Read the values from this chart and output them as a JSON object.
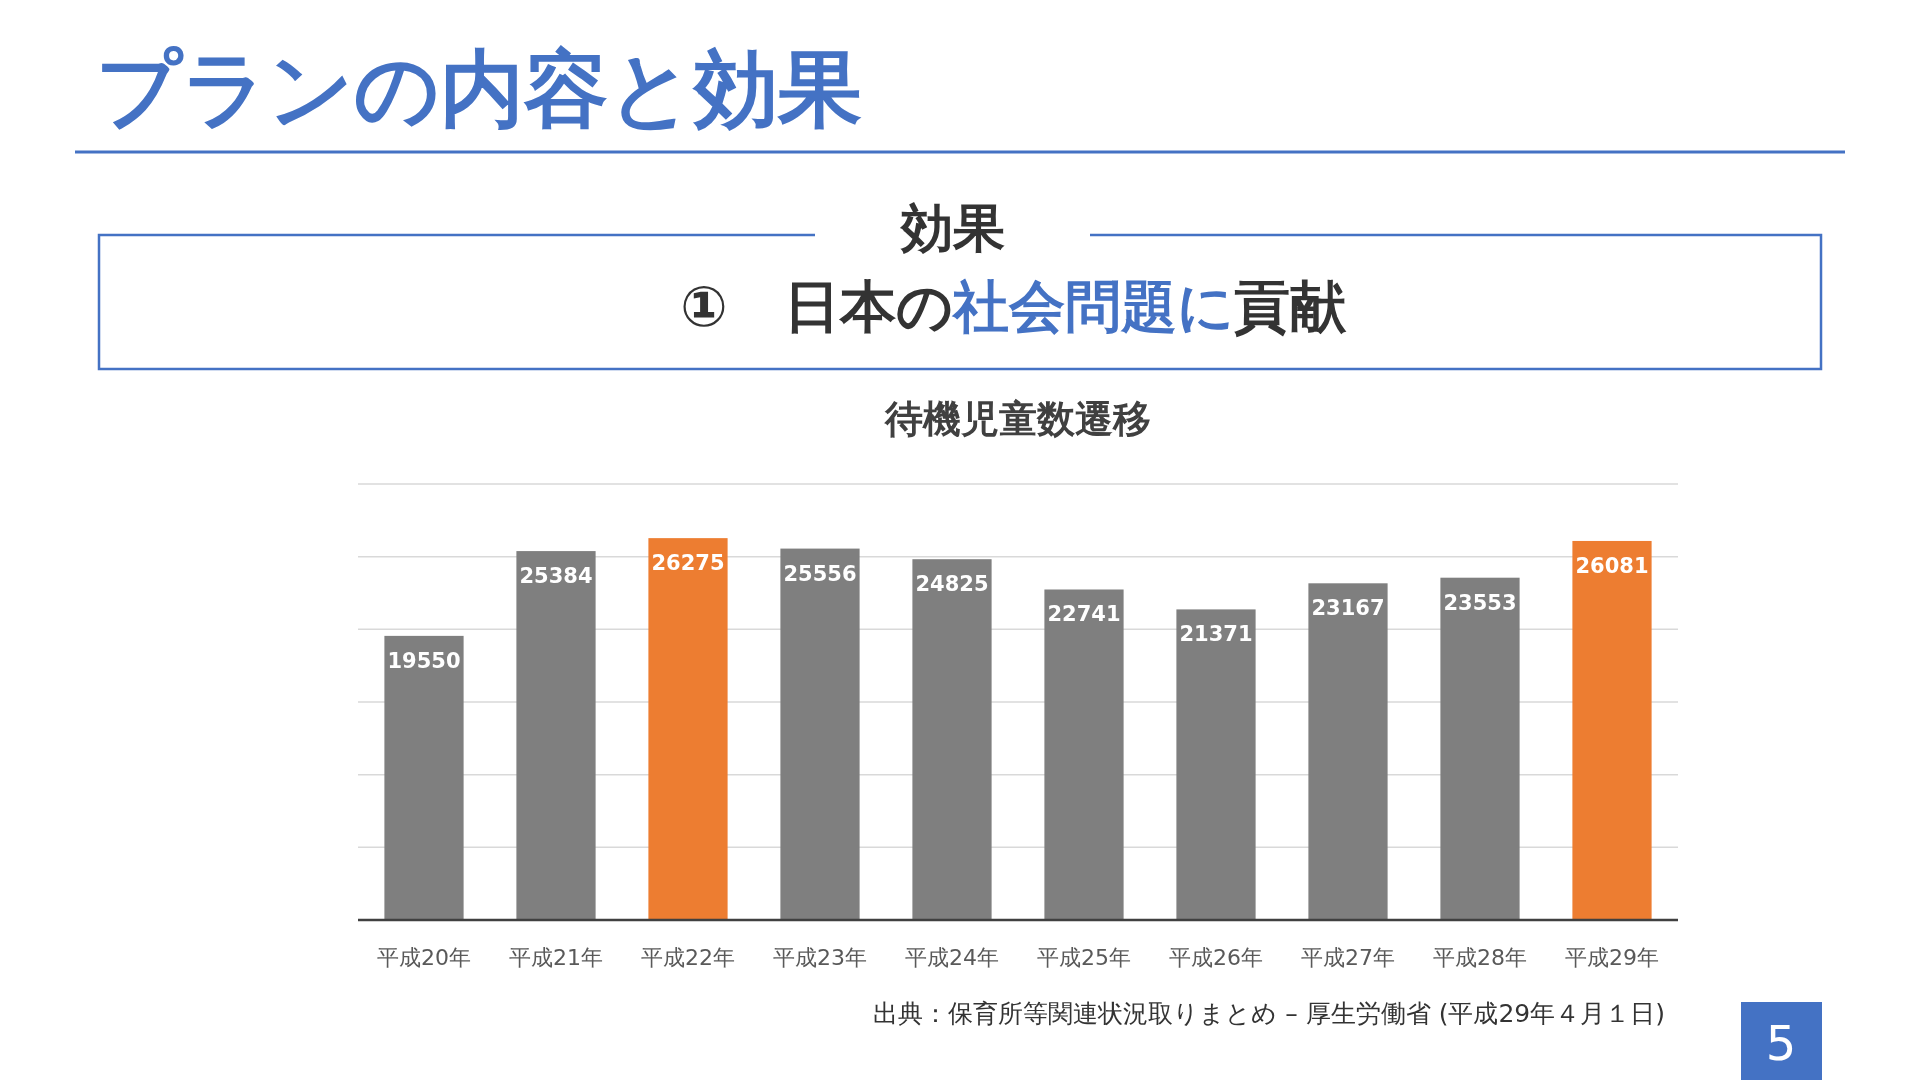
{
  "chart_data": {
    "type": "bar",
    "title": "待機児童数遷移",
    "categories": [
      "平成20年",
      "平成21年",
      "平成22年",
      "平成23年",
      "平成24年",
      "平成25年",
      "平成26年",
      "平成27年",
      "平成28年",
      "平成29年"
    ],
    "values": [
      19550,
      25384,
      26275,
      25556,
      24825,
      22741,
      21371,
      23167,
      23553,
      26081
    ],
    "colors": [
      "#7f7f7f",
      "#7f7f7f",
      "#ed7d31",
      "#7f7f7f",
      "#7f7f7f",
      "#7f7f7f",
      "#7f7f7f",
      "#7f7f7f",
      "#7f7f7f",
      "#ed7d31"
    ],
    "ylim": [
      0,
      30000
    ],
    "yticks": [
      {
        "value": 0,
        "label": null
      },
      {
        "value": 5000,
        "label": null
      },
      {
        "value": 10000,
        "label": null
      },
      {
        "value": 15000,
        "label": null
      },
      {
        "value": 20000,
        "label": null
      },
      {
        "value": 25000,
        "label": null
      },
      {
        "value": 30000,
        "label": null
      }
    ],
    "tick_labels": "x",
    "grid": "y",
    "data_labels": true,
    "annotations": [
      "プランの内容と効果",
      "効果",
      "①　日本の",
      "社会問題に",
      "貢献",
      "出典：保育所等関連状況取りまとめ – 厚生労働省 (平成29年４月１日)",
      "5"
    ]
  }
}
